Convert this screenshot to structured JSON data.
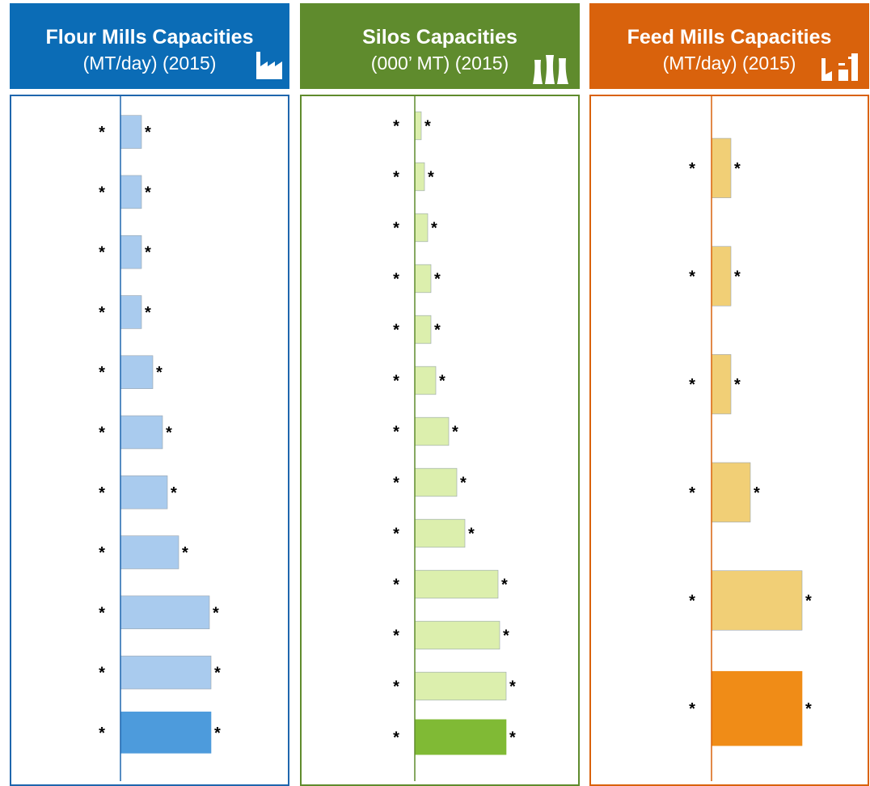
{
  "colors": {
    "flour_header": "#0b6cb6",
    "flour_bar": "#a9cbee",
    "flour_bar_highlight": "#4d9bdc",
    "flour_border": "#1f66ad",
    "silos_header": "#5f8b2d",
    "silos_bar": "#dcefad",
    "silos_bar_highlight": "#80ba35",
    "silos_border": "#5f8b2d",
    "feed_header": "#d9620c",
    "feed_bar": "#f1cf76",
    "feed_bar_highlight": "#f08c17",
    "feed_border": "#d9620c"
  },
  "panels": [
    {
      "title": "Flour Mills Capacities",
      "subtitle": "(MT/day) (2015)",
      "icon": "factory-icon"
    },
    {
      "title": "Silos Capacities",
      "subtitle": "(000’ MT) (2015)",
      "icon": "silos-icon"
    },
    {
      "title": "Feed Mills Capacities",
      "subtitle": "(MT/day) (2015)",
      "icon": "feed-mill-icon"
    }
  ],
  "chart_data": [
    {
      "type": "bar",
      "orientation": "horizontal",
      "title": "Flour Mills Capacities",
      "subtitle": "(MT/day) (2015)",
      "categories": [
        "*",
        "*",
        "*",
        "*",
        "*",
        "*",
        "*",
        "*",
        "*",
        "*",
        "*"
      ],
      "values": [
        26,
        26,
        26,
        26,
        40,
        52,
        58,
        72,
        110,
        112,
        112
      ],
      "value_labels": [
        "*",
        "*",
        "*",
        "*",
        "*",
        "*",
        "*",
        "*",
        "*",
        "*",
        "*"
      ],
      "highlight_index": 10,
      "grid": false
    },
    {
      "type": "bar",
      "orientation": "horizontal",
      "title": "Silos Capacities",
      "subtitle": "(000’ MT) (2015)",
      "categories": [
        "*",
        "*",
        "*",
        "*",
        "*",
        "*",
        "*",
        "*",
        "*",
        "*",
        "*",
        "*",
        "*"
      ],
      "values": [
        8,
        12,
        16,
        20,
        20,
        26,
        42,
        52,
        62,
        103,
        105,
        113,
        113
      ],
      "value_labels": [
        "*",
        "*",
        "*",
        "*",
        "*",
        "*",
        "*",
        "*",
        "*",
        "*",
        "*",
        "*",
        "*"
      ],
      "highlight_index": 12,
      "grid": false
    },
    {
      "type": "bar",
      "orientation": "horizontal",
      "title": "Feed Mills Capacities",
      "subtitle": "(MT/day) (2015)",
      "categories": [
        "*",
        "*",
        "*",
        "*",
        "*",
        "*"
      ],
      "values": [
        24,
        24,
        24,
        48,
        112,
        112
      ],
      "value_labels": [
        "*",
        "*",
        "*",
        "*",
        "*",
        "*"
      ],
      "highlight_index": 5,
      "grid": false
    }
  ]
}
